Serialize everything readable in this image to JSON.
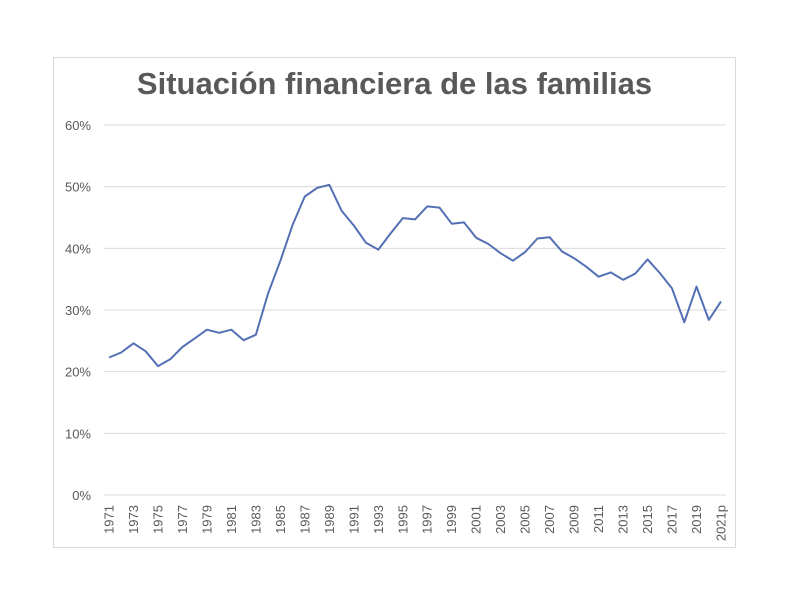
{
  "chart_data": {
    "type": "line",
    "title": "Situación financiera de las familias",
    "xlabel": "",
    "ylabel": "",
    "ylim": [
      0,
      60
    ],
    "yticks": [
      "0%",
      "10%",
      "20%",
      "30%",
      "40%",
      "50%",
      "60%"
    ],
    "x": [
      "1971",
      "1972",
      "1973",
      "1974",
      "1975",
      "1976",
      "1977",
      "1978",
      "1979",
      "1980",
      "1981",
      "1982",
      "1983",
      "1984",
      "1985",
      "1986",
      "1987",
      "1988",
      "1989",
      "1990",
      "1991",
      "1992",
      "1993",
      "1994",
      "1995",
      "1996",
      "1997",
      "1998",
      "1999",
      "2000",
      "2001",
      "2002",
      "2003",
      "2004",
      "2005",
      "2006",
      "2007",
      "2008",
      "2009",
      "2010",
      "2011",
      "2012",
      "2013",
      "2014",
      "2015",
      "2016",
      "2017",
      "2018",
      "2019",
      "2020",
      "2021p"
    ],
    "xtick_labels": [
      "1971",
      "1973",
      "1975",
      "1977",
      "1979",
      "1981",
      "1983",
      "1985",
      "1987",
      "1989",
      "1991",
      "1993",
      "1995",
      "1997",
      "1999",
      "2001",
      "2003",
      "2005",
      "2007",
      "2009",
      "2011",
      "2013",
      "2015",
      "2017",
      "2019",
      "2021p"
    ],
    "series": [
      {
        "values": [
          22.3,
          23.1,
          24.6,
          23.3,
          20.9,
          22.0,
          24.0,
          25.4,
          26.8,
          26.3,
          26.8,
          25.1,
          26.0,
          32.7,
          38.0,
          43.8,
          48.4,
          49.8,
          50.3,
          46.1,
          43.7,
          40.9,
          39.8,
          42.4,
          44.9,
          44.7,
          46.8,
          46.6,
          44.0,
          44.2,
          41.7,
          40.7,
          39.2,
          38.0,
          39.4,
          41.6,
          41.8,
          39.5,
          38.4,
          37.0,
          35.4,
          36.1,
          34.9,
          35.9,
          38.2,
          36.0,
          33.5,
          28.0,
          33.8,
          28.4,
          31.4
        ],
        "color": "#5470b4"
      }
    ],
    "grid": true,
    "gridline_color": "#d9d9d9",
    "legend": "none"
  }
}
